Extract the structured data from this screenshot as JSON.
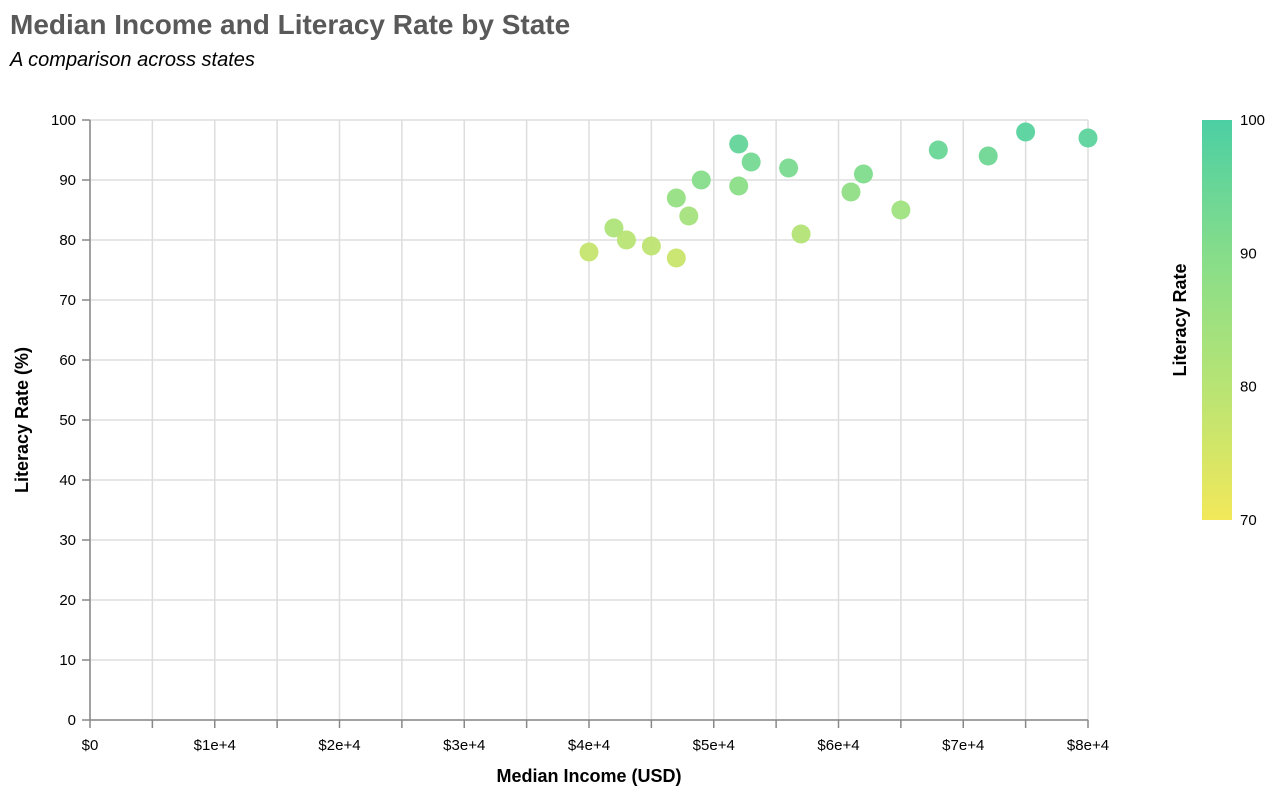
{
  "chart_data": {
    "type": "scatter",
    "title": "Median Income and Literacy Rate by State",
    "subtitle": "A comparison across states",
    "xlabel": "Median Income (USD)",
    "ylabel": "Literacy Rate (%)",
    "xlim": [
      0,
      80000
    ],
    "ylim": [
      0,
      100
    ],
    "x_ticks": [
      0,
      5000,
      10000,
      15000,
      20000,
      25000,
      30000,
      35000,
      40000,
      45000,
      50000,
      55000,
      60000,
      65000,
      70000,
      75000,
      80000
    ],
    "x_tick_labels": [
      {
        "value": 0,
        "label": "$0"
      },
      {
        "value": 10000,
        "label": "$1e+4"
      },
      {
        "value": 20000,
        "label": "$2e+4"
      },
      {
        "value": 30000,
        "label": "$3e+4"
      },
      {
        "value": 40000,
        "label": "$4e+4"
      },
      {
        "value": 50000,
        "label": "$5e+4"
      },
      {
        "value": 60000,
        "label": "$6e+4"
      },
      {
        "value": 70000,
        "label": "$7e+4"
      },
      {
        "value": 80000,
        "label": "$8e+4"
      }
    ],
    "y_ticks": [
      0,
      10,
      20,
      30,
      40,
      50,
      60,
      70,
      80,
      90,
      100
    ],
    "grid": true,
    "points": [
      {
        "x": 40000,
        "y": 78
      },
      {
        "x": 42000,
        "y": 82
      },
      {
        "x": 43000,
        "y": 80
      },
      {
        "x": 45000,
        "y": 79
      },
      {
        "x": 47000,
        "y": 77
      },
      {
        "x": 47000,
        "y": 87
      },
      {
        "x": 48000,
        "y": 84
      },
      {
        "x": 49000,
        "y": 90
      },
      {
        "x": 52000,
        "y": 96
      },
      {
        "x": 52000,
        "y": 89
      },
      {
        "x": 53000,
        "y": 93
      },
      {
        "x": 56000,
        "y": 92
      },
      {
        "x": 57000,
        "y": 81
      },
      {
        "x": 61000,
        "y": 88
      },
      {
        "x": 62000,
        "y": 91
      },
      {
        "x": 65000,
        "y": 85
      },
      {
        "x": 68000,
        "y": 95
      },
      {
        "x": 72000,
        "y": 94
      },
      {
        "x": 75000,
        "y": 98
      },
      {
        "x": 80000,
        "y": 97
      }
    ],
    "color_scale": {
      "field": "Literacy Rate",
      "domain": [
        70,
        100
      ],
      "ticks": [
        70,
        80,
        90,
        100
      ],
      "colors": [
        "#f2e85a",
        "#b8e474",
        "#86dd8a",
        "#4ccfa4"
      ]
    },
    "legend": {
      "title": "Literacy Rate",
      "position": "right"
    }
  }
}
